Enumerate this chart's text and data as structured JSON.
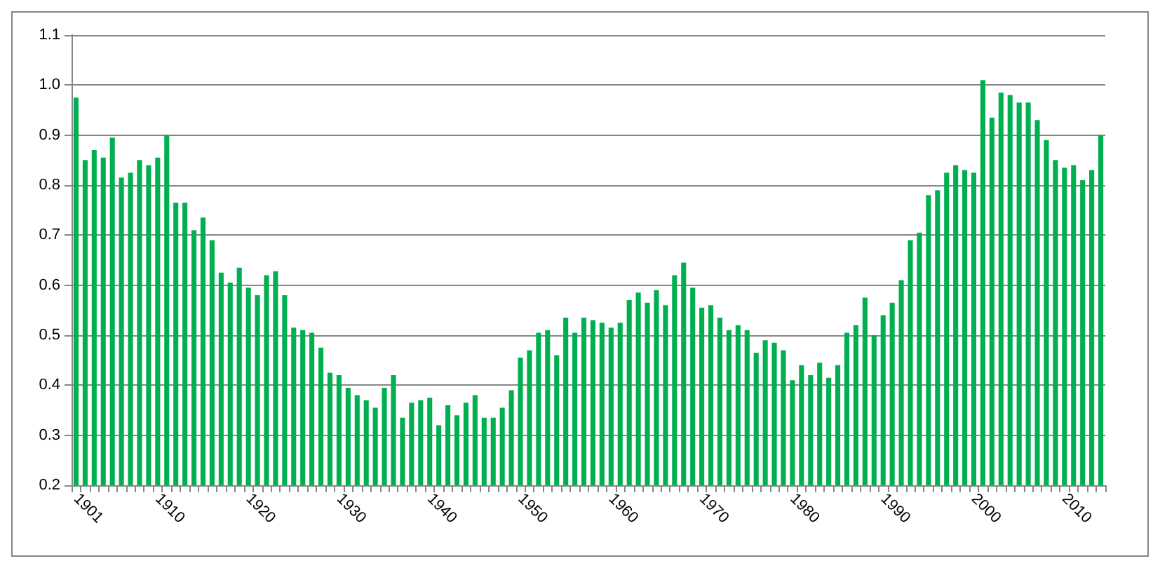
{
  "chart_data": {
    "type": "bar",
    "color": "#00b050",
    "categories": [
      "1901",
      null,
      null,
      null,
      null,
      null,
      null,
      null,
      null,
      "1910",
      null,
      null,
      null,
      null,
      null,
      null,
      null,
      null,
      null,
      "1920",
      null,
      null,
      null,
      null,
      null,
      null,
      null,
      null,
      null,
      "1930",
      null,
      null,
      null,
      null,
      null,
      null,
      null,
      null,
      null,
      "1940",
      null,
      null,
      null,
      null,
      null,
      null,
      null,
      null,
      null,
      "1950",
      null,
      null,
      null,
      null,
      null,
      null,
      null,
      null,
      null,
      "1960",
      null,
      null,
      null,
      null,
      null,
      null,
      null,
      null,
      null,
      "1970",
      null,
      null,
      null,
      null,
      null,
      null,
      null,
      null,
      null,
      "1980",
      null,
      null,
      null,
      null,
      null,
      null,
      null,
      null,
      null,
      "1990",
      null,
      null,
      null,
      null,
      null,
      null,
      null,
      null,
      null,
      "2000",
      null,
      null,
      null,
      null,
      null,
      null,
      null,
      null,
      null,
      "2010",
      null,
      null,
      null,
      null
    ],
    "values": [
      0.975,
      0.85,
      0.87,
      0.855,
      0.895,
      0.815,
      0.825,
      0.85,
      0.84,
      0.855,
      0.9,
      0.765,
      0.765,
      0.71,
      0.735,
      0.69,
      0.625,
      0.605,
      0.635,
      0.595,
      0.58,
      0.62,
      0.628,
      0.58,
      0.515,
      0.51,
      0.505,
      0.475,
      0.425,
      0.42,
      0.395,
      0.38,
      0.37,
      0.355,
      0.395,
      0.42,
      0.335,
      0.365,
      0.37,
      0.375,
      0.32,
      0.36,
      0.34,
      0.365,
      0.38,
      0.335,
      0.335,
      0.355,
      0.39,
      0.455,
      0.47,
      0.505,
      0.51,
      0.46,
      0.535,
      0.505,
      0.535,
      0.53,
      0.525,
      0.515,
      0.525,
      0.57,
      0.585,
      0.565,
      0.59,
      0.56,
      0.62,
      0.645,
      0.595,
      0.555,
      0.56,
      0.535,
      0.51,
      0.52,
      0.51,
      0.465,
      0.49,
      0.485,
      0.47,
      0.41,
      0.44,
      0.42,
      0.445,
      0.415,
      0.44,
      0.505,
      0.52,
      0.575,
      0.5,
      0.54,
      0.565,
      0.61,
      0.69,
      0.705,
      0.78,
      0.79,
      0.825,
      0.84,
      0.83,
      0.825,
      1.01,
      0.935,
      0.985,
      0.98,
      0.965,
      0.965,
      0.93,
      0.89,
      0.85,
      0.835,
      0.84,
      0.81,
      0.83,
      0.9
    ],
    "ylim": [
      0.2,
      1.1
    ],
    "yticks": [
      0.2,
      0.3,
      0.4,
      0.5,
      0.6,
      0.7,
      0.8,
      0.9,
      {
        "value": 1,
        "label": "1.0"
      },
      1.1
    ],
    "grid": "y"
  }
}
